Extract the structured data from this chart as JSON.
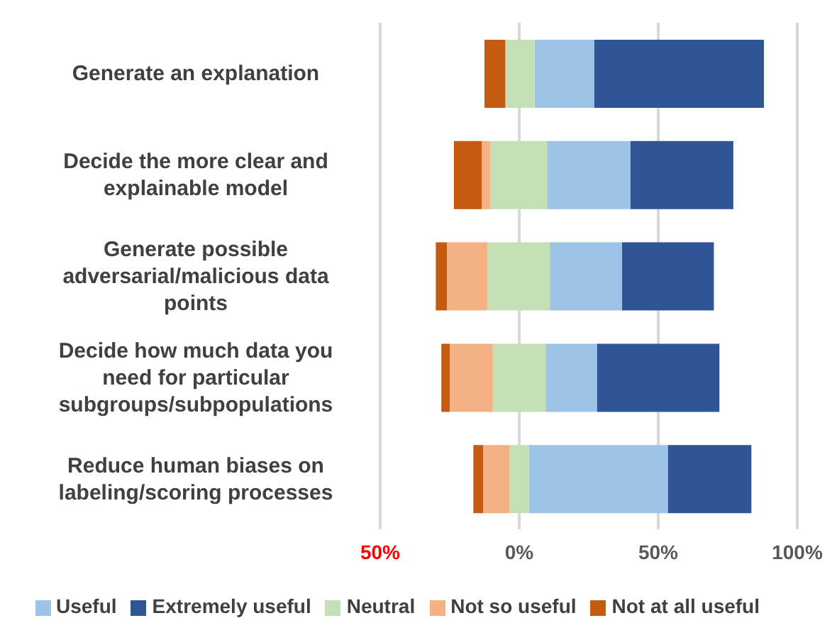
{
  "chart_data": {
    "type": "bar",
    "orientation": "horizontal",
    "categories": [
      "Generate an explanation",
      "Decide the more clear and explainable model",
      "Generate possible adversarial/malicious data points",
      "Decide how much data you need for particular subgroups/subpopulations",
      "Reduce human biases on labeling/scoring processes"
    ],
    "series": [
      {
        "name": "Useful",
        "color": "#9dc3e6",
        "values": [
          21.5,
          30,
          26,
          18.5,
          50
        ],
        "base": [
          5.5,
          10,
          11,
          9.5,
          3.5
        ]
      },
      {
        "name": "Extremely useful",
        "color": "#2f5597",
        "values": [
          61,
          37,
          33,
          44,
          30
        ],
        "base": [
          27,
          40,
          37,
          28,
          53.5
        ]
      },
      {
        "name": "Neutral",
        "color": "#c5e0b4",
        "values": [
          10.5,
          20.5,
          22.5,
          19,
          7
        ],
        "base": [
          -5,
          -10.5,
          -11.5,
          -9.5,
          -3.5
        ]
      },
      {
        "name": "Not so useful",
        "color": "#f4b183",
        "values": [
          null,
          3,
          14.5,
          15.5,
          9.5
        ],
        "base": [
          null,
          -13.5,
          -26,
          -25,
          -13
        ]
      },
      {
        "name": "Not at all useful",
        "color": "#c55a11",
        "values": [
          7.5,
          10,
          4,
          3,
          3.5
        ],
        "base": [
          -12.5,
          -23.5,
          -30,
          -28,
          -16.5
        ]
      }
    ],
    "xlim": [
      -50,
      100
    ],
    "xticks": [
      {
        "value": -50,
        "label": "50%"
      },
      {
        "value": 0,
        "label": "0%"
      },
      {
        "value": 50,
        "label": "50%"
      },
      {
        "value": 100,
        "label": "100%"
      }
    ],
    "grid": "x",
    "legend": "bottom"
  }
}
